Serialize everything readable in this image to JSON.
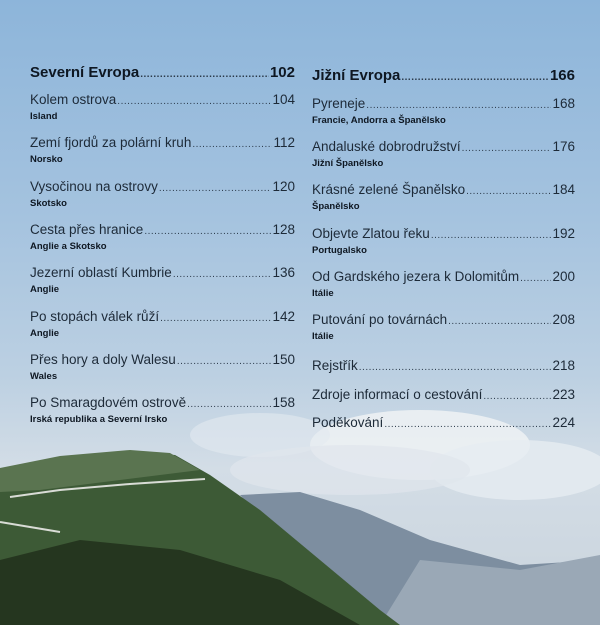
{
  "left": {
    "heading": {
      "title": "Severní Evropa",
      "page": "102"
    },
    "entries": [
      {
        "title": "Kolem ostrova",
        "page": "104",
        "subtitle": "Island"
      },
      {
        "title": "Zemí fjordů za polární kruh",
        "page": "112",
        "subtitle": "Norsko"
      },
      {
        "title": "Vysočinou na ostrovy",
        "page": "120",
        "subtitle": "Skotsko"
      },
      {
        "title": "Cesta přes hranice",
        "page": "128",
        "subtitle": "Anglie a Skotsko"
      },
      {
        "title": "Jezerní oblastí Kumbrie",
        "page": "136",
        "subtitle": "Anglie"
      },
      {
        "title": "Po stopách válek růží",
        "page": "142",
        "subtitle": "Anglie"
      },
      {
        "title": "Přes hory a doly Walesu",
        "page": "150",
        "subtitle": "Wales"
      },
      {
        "title": "Po Smaragdovém ostrově",
        "page": "158",
        "subtitle": "Irská republika a Severní Irsko"
      }
    ]
  },
  "right": {
    "heading": {
      "title": "Jižní Evropa",
      "page": "166"
    },
    "entries": [
      {
        "title": "Pyreneje",
        "page": "168",
        "subtitle": "Francie, Andorra a Španělsko"
      },
      {
        "title": "Andaluské dobrodružství",
        "page": "176",
        "subtitle": "Jižní Španělsko"
      },
      {
        "title": "Krásné zelené Španělsko",
        "page": "184",
        "subtitle": "Španělsko"
      },
      {
        "title": "Objevte Zlatou řeku",
        "page": "192",
        "subtitle": "Portugalsko"
      },
      {
        "title": "Od Gardského jezera k Dolomitům",
        "page": "200",
        "subtitle": "Itálie"
      },
      {
        "title": "Putování po továrnách",
        "page": "208",
        "subtitle": "Itálie"
      }
    ],
    "extras": [
      {
        "title": "Rejstřík",
        "page": "218"
      },
      {
        "title": "Zdroje informací o cestování",
        "page": "223"
      },
      {
        "title": "Poděkování",
        "page": "224"
      }
    ]
  }
}
